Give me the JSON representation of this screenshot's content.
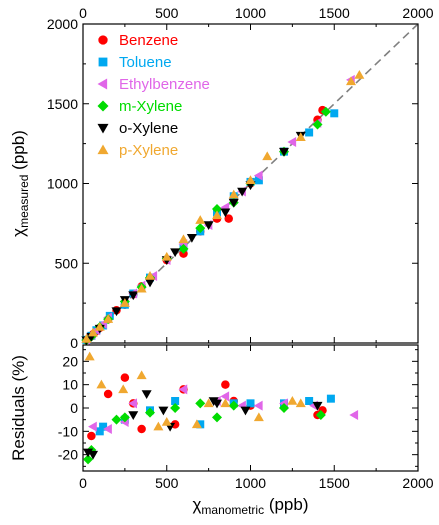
{
  "chart_data": [
    {
      "type": "scatter",
      "panel": "main",
      "xlabel": "χmanometric (ppb)",
      "ylabel": "χmeasured (ppb)",
      "xlabel_parts": {
        "sym": "χ",
        "sub": "manometric",
        "unit": " (ppb)"
      },
      "ylabel_parts": {
        "sym": "χ",
        "sub": "measured",
        "unit": " (ppb)"
      },
      "xlim": [
        0,
        2000
      ],
      "ylim": [
        0,
        2000
      ],
      "xticks": [
        "0",
        "500",
        "1000",
        "1500",
        "2000"
      ],
      "yticks": [
        "0",
        "500",
        "1000",
        "1500",
        "2000"
      ],
      "top_xticks": [
        "0",
        "500",
        "1000",
        "1500",
        "2000"
      ],
      "grid": false,
      "legend_position": "top-left",
      "reference_line": {
        "style": "dashed",
        "color": "#808080",
        "from": [
          0,
          0
        ],
        "to": [
          2000,
          2000
        ]
      },
      "series": [
        {
          "name": "Benzene",
          "marker": "circle",
          "color": "#ff0000",
          "x": [
            20,
            40,
            60,
            80,
            100,
            150,
            200,
            250,
            300,
            350,
            400,
            500,
            600,
            700,
            800,
            870,
            900,
            1000,
            1200,
            1400,
            1430
          ],
          "y": [
            18,
            35,
            55,
            75,
            95,
            148,
            205,
            240,
            305,
            355,
            405,
            520,
            560,
            700,
            780,
            780,
            900,
            1000,
            1200,
            1400,
            1460
          ]
        },
        {
          "name": "Toluene",
          "marker": "square",
          "color": "#00a8f0",
          "x": [
            20,
            50,
            80,
            120,
            160,
            250,
            300,
            400,
            600,
            700,
            800,
            900,
            1000,
            1050,
            1200,
            1350,
            1500
          ],
          "y": [
            20,
            45,
            80,
            110,
            170,
            240,
            310,
            410,
            600,
            700,
            820,
            920,
            1010,
            1020,
            1200,
            1320,
            1440
          ]
        },
        {
          "name": "Ethylbenzene",
          "marker": "triangle-left",
          "color": "#e066e8",
          "x": [
            20,
            50,
            80,
            120,
            150,
            250,
            300,
            350,
            420,
            500,
            600,
            750,
            850,
            950,
            1050,
            1250,
            1400,
            1600
          ],
          "y": [
            20,
            50,
            80,
            120,
            160,
            260,
            310,
            360,
            420,
            520,
            620,
            740,
            850,
            950,
            1050,
            1260,
            1380,
            1650
          ]
        },
        {
          "name": "m-Xylene",
          "marker": "diamond",
          "color": "#00dc00",
          "x": [
            20,
            50,
            100,
            150,
            250,
            350,
            400,
            500,
            600,
            700,
            800,
            900,
            1000,
            1200,
            1400,
            1450
          ],
          "y": [
            18,
            40,
            100,
            150,
            260,
            350,
            410,
            530,
            590,
            720,
            840,
            880,
            1000,
            1200,
            1370,
            1450
          ]
        },
        {
          "name": "o-Xylene",
          "marker": "triangle-down",
          "color": "#000000",
          "x": [
            20,
            50,
            100,
            200,
            250,
            300,
            400,
            500,
            550,
            650,
            750,
            850,
            900,
            950,
            1000,
            1200,
            1300
          ],
          "y": [
            18,
            40,
            90,
            200,
            270,
            300,
            380,
            520,
            570,
            660,
            740,
            820,
            880,
            950,
            990,
            1200,
            1300
          ]
        },
        {
          "name": "p-Xylene",
          "marker": "triangle-up",
          "color": "#f0a830",
          "x": [
            20,
            60,
            100,
            150,
            250,
            350,
            400,
            500,
            600,
            700,
            800,
            900,
            1000,
            1100,
            1300,
            1600,
            1650
          ],
          "y": [
            25,
            65,
            100,
            150,
            250,
            340,
            420,
            540,
            650,
            770,
            800,
            930,
            1020,
            1170,
            1290,
            1640,
            1680
          ]
        }
      ]
    },
    {
      "type": "scatter",
      "panel": "residuals",
      "xlabel": "χmanometric (ppb)",
      "ylabel": "Residuals (%)",
      "xlim": [
        0,
        2000
      ],
      "ylim": [
        -27,
        27
      ],
      "xticks": [
        "0",
        "500",
        "1000",
        "1500",
        "2000"
      ],
      "yticks": [
        "-20",
        "-10",
        "0",
        "10",
        "20"
      ],
      "grid": false,
      "series": [
        {
          "name": "Benzene",
          "marker": "circle",
          "color": "#ff0000",
          "x": [
            50,
            150,
            250,
            300,
            350,
            550,
            600,
            850,
            900,
            1000,
            1400,
            1430
          ],
          "y": [
            -12,
            6,
            13,
            2,
            -9,
            -7,
            8,
            10,
            3,
            1,
            -3,
            -1
          ]
        },
        {
          "name": "Toluene",
          "marker": "square",
          "color": "#00a8f0",
          "x": [
            100,
            120,
            250,
            400,
            550,
            700,
            900,
            1000,
            1200,
            1350,
            1480
          ],
          "y": [
            -10,
            -8,
            -5,
            -1,
            3,
            -7,
            2,
            2,
            2,
            3,
            4
          ]
        },
        {
          "name": "Ethylbenzene",
          "marker": "triangle-left",
          "color": "#e066e8",
          "x": [
            60,
            150,
            250,
            300,
            600,
            800,
            850,
            950,
            1050,
            1200,
            1380,
            1620
          ],
          "y": [
            -8,
            -9,
            -6,
            2,
            8,
            3,
            5,
            1,
            1,
            2,
            1,
            -3
          ]
        },
        {
          "name": "m-Xylene",
          "marker": "diamond",
          "color": "#00dc00",
          "x": [
            30,
            50,
            200,
            250,
            400,
            550,
            700,
            800,
            900,
            1200,
            1420
          ],
          "y": [
            -22,
            -18,
            -5,
            -4,
            -2,
            0,
            2,
            -4,
            1,
            0,
            -3
          ]
        },
        {
          "name": "o-Xylene",
          "marker": "triangle-down",
          "color": "#000000",
          "x": [
            30,
            60,
            300,
            380,
            480,
            520,
            780,
            800,
            970,
            1400
          ],
          "y": [
            -19,
            -20,
            -3,
            6,
            -1,
            -8,
            3,
            2,
            -1,
            1
          ]
        },
        {
          "name": "p-Xylene",
          "marker": "triangle-up",
          "color": "#f0a830",
          "x": [
            40,
            110,
            240,
            350,
            450,
            500,
            680,
            750,
            850,
            1050,
            1250,
            1300
          ],
          "y": [
            22,
            10,
            8,
            14,
            -8,
            -6,
            -7,
            2,
            2,
            -4,
            3,
            2
          ]
        }
      ]
    }
  ]
}
